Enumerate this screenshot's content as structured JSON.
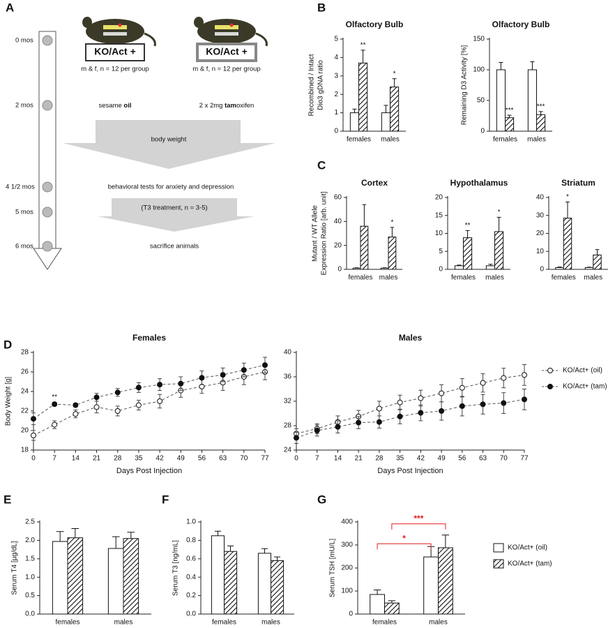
{
  "panel_labels": [
    "A",
    "B",
    "C",
    "D",
    "E",
    "F",
    "G"
  ],
  "timeline": {
    "times": [
      "0 mos",
      "2 mos",
      "4 1/2 mos",
      "5 mos",
      "6 mos"
    ],
    "groups": [
      {
        "label": "KO/Act +",
        "note": "m & f, n = 12 per group",
        "treatment": {
          "prefix": "sesame ",
          "bold": "oil",
          "suffix": ""
        }
      },
      {
        "label": "KO/Act +",
        "note": "m & f, n = 12 per group",
        "treatment": {
          "prefix": "2 x 2mg ",
          "bold": "tam",
          "suffix": "oxifen"
        }
      }
    ],
    "steps": [
      "body weight",
      "behavioral tests for anxiety and depression",
      "(T3 treatment, n = 3-5)",
      "sacrifice animals"
    ]
  },
  "chart_data": [
    {
      "type": "bar",
      "title": "Olfactory Bulb",
      "ylabel": [
        "Recombined / Intact",
        "Dio3 gDNA ratio"
      ],
      "categories": [
        "females",
        "males"
      ],
      "ylim": [
        0,
        5
      ],
      "yticks": [
        0,
        1,
        2,
        3,
        4,
        5
      ],
      "series": [
        {
          "fill": "white",
          "values": [
            1.0,
            1.0
          ],
          "errors": [
            0.2,
            0.4
          ],
          "sig": [
            null,
            null
          ]
        },
        {
          "fill": "hatch",
          "values": [
            3.7,
            2.4
          ],
          "errors": [
            0.7,
            0.45
          ],
          "sig": [
            "**",
            "*"
          ]
        }
      ]
    },
    {
      "type": "bar",
      "title": "Olfactory Bulb",
      "ylabel": [
        "Remaining D3 Activity [%]"
      ],
      "categories": [
        "females",
        "males"
      ],
      "ylim": [
        0,
        150
      ],
      "yticks": [
        0,
        50,
        100,
        150
      ],
      "series": [
        {
          "fill": "white",
          "values": [
            100,
            100
          ],
          "errors": [
            12,
            13
          ],
          "sig": [
            null,
            null
          ]
        },
        {
          "fill": "hatch",
          "values": [
            22,
            27
          ],
          "errors": [
            4,
            5
          ],
          "sig": [
            "***",
            "***"
          ]
        }
      ]
    },
    {
      "type": "bar",
      "title": "Cortex",
      "ylabel": [
        "Mutant / WT Allele",
        "Expression Ratio [arb. unit]"
      ],
      "categories": [
        "females",
        "males"
      ],
      "ylim": [
        0,
        60
      ],
      "yticks": [
        0,
        20,
        40,
        60
      ],
      "series": [
        {
          "fill": "white",
          "values": [
            1,
            1
          ],
          "errors": [
            0.3,
            0.3
          ],
          "sig": [
            null,
            null
          ]
        },
        {
          "fill": "hatch",
          "values": [
            36,
            27
          ],
          "errors": [
            18,
            8
          ],
          "sig": [
            null,
            "*"
          ]
        }
      ]
    },
    {
      "type": "bar",
      "title": "Hypothalamus",
      "categories": [
        "females",
        "males"
      ],
      "ylim": [
        0,
        20
      ],
      "yticks": [
        0,
        5,
        10,
        15,
        20
      ],
      "series": [
        {
          "fill": "white",
          "values": [
            1,
            1
          ],
          "errors": [
            0.2,
            0.4
          ],
          "sig": [
            null,
            null
          ]
        },
        {
          "fill": "hatch",
          "values": [
            8.8,
            10.5
          ],
          "errors": [
            2,
            4
          ],
          "sig": [
            "**",
            "*"
          ]
        }
      ]
    },
    {
      "type": "bar",
      "title": "Striatum",
      "categories": [
        "females",
        "males"
      ],
      "ylim": [
        0,
        40
      ],
      "yticks": [
        0,
        10,
        20,
        30,
        40
      ],
      "series": [
        {
          "fill": "white",
          "values": [
            1,
            1
          ],
          "errors": [
            0.3,
            0.2
          ],
          "sig": [
            null,
            null
          ]
        },
        {
          "fill": "hatch",
          "values": [
            28.5,
            8
          ],
          "errors": [
            9,
            3
          ],
          "sig": [
            "*",
            null
          ]
        }
      ]
    },
    {
      "type": "line",
      "title": "Females",
      "ylabel": [
        "Body Weight [g]"
      ],
      "xlabel": "Days Post Injection",
      "x": [
        0,
        7,
        14,
        21,
        28,
        35,
        42,
        49,
        56,
        63,
        70,
        77
      ],
      "xlim": [
        0,
        77
      ],
      "xticks": [
        0,
        7,
        14,
        21,
        28,
        35,
        42,
        49,
        56,
        63,
        70,
        77
      ],
      "ylim": [
        18,
        28
      ],
      "yticks": [
        18,
        20,
        22,
        24,
        26,
        28
      ],
      "series": [
        {
          "marker": "open",
          "values": [
            19.5,
            20.6,
            21.7,
            22.4,
            22.0,
            22.6,
            23.0,
            24.1,
            24.5,
            24.9,
            25.5,
            26.0
          ],
          "errors": [
            0.5,
            0.4,
            0.4,
            0.6,
            0.5,
            0.5,
            0.7,
            0.7,
            0.7,
            0.8,
            0.8,
            0.8
          ]
        },
        {
          "marker": "filled",
          "values": [
            21.2,
            22.7,
            22.6,
            23.4,
            23.9,
            24.4,
            24.7,
            24.8,
            25.4,
            25.7,
            26.2,
            26.7
          ],
          "errors": [
            0.6,
            0.2,
            0.2,
            0.4,
            0.4,
            0.5,
            0.6,
            0.7,
            0.7,
            0.7,
            0.7,
            0.8
          ],
          "sig": [
            null,
            "**",
            null,
            null,
            null,
            null,
            null,
            null,
            null,
            null,
            null,
            null
          ]
        }
      ]
    },
    {
      "type": "line",
      "title": "Males",
      "xlabel": "Days Post Injection",
      "legend": "right",
      "x": [
        0,
        7,
        14,
        21,
        28,
        35,
        42,
        49,
        56,
        63,
        70,
        77
      ],
      "xlim": [
        0,
        77
      ],
      "xticks": [
        0,
        7,
        14,
        21,
        28,
        35,
        42,
        49,
        56,
        63,
        70,
        77
      ],
      "ylim": [
        24,
        40
      ],
      "yticks": [
        24,
        28,
        32,
        36,
        40
      ],
      "series": [
        {
          "name": "KO/Act+ (oil)",
          "marker": "open",
          "values": [
            26.7,
            27.5,
            28.6,
            29.5,
            30.8,
            31.8,
            32.5,
            33.3,
            34.2,
            35.0,
            35.8,
            36.3
          ],
          "errors": [
            0.8,
            0.8,
            1.0,
            1.0,
            1.2,
            1.2,
            1.3,
            1.4,
            1.5,
            1.5,
            1.6,
            1.7
          ]
        },
        {
          "name": "KO/Act+ (tam)",
          "marker": "filled",
          "values": [
            26.0,
            27.2,
            27.8,
            28.5,
            28.6,
            29.5,
            30.1,
            30.4,
            31.2,
            31.5,
            31.7,
            32.3
          ],
          "errors": [
            0.9,
            0.9,
            1.0,
            1.0,
            1.0,
            1.2,
            1.3,
            1.5,
            1.6,
            1.6,
            1.7,
            1.7
          ]
        }
      ]
    },
    {
      "type": "bar",
      "ylabel": [
        "Serum T4 [µg/dL]"
      ],
      "categories": [
        "females",
        "males"
      ],
      "ylim": [
        0,
        2.5
      ],
      "yticks": [
        {
          "value": 0,
          "label": "0.0"
        },
        0.5,
        {
          "value": 1,
          "label": "1.0"
        },
        1.5,
        {
          "value": 2,
          "label": "2.0"
        },
        2.5
      ],
      "series": [
        {
          "fill": "white",
          "values": [
            1.97,
            1.78
          ],
          "errors": [
            0.27,
            0.32
          ]
        },
        {
          "fill": "hatch",
          "values": [
            2.07,
            2.05
          ],
          "errors": [
            0.25,
            0.17
          ]
        }
      ]
    },
    {
      "type": "bar",
      "ylabel": [
        "Serum T3 [ng/mL]"
      ],
      "categories": [
        "females",
        "males"
      ],
      "ylim": [
        0,
        1
      ],
      "yticks": [
        {
          "value": 0,
          "label": "0.0"
        },
        0.2,
        0.4,
        0.6,
        0.8,
        {
          "value": 1,
          "label": "1.0"
        }
      ],
      "series": [
        {
          "fill": "white",
          "values": [
            0.85,
            0.66
          ],
          "errors": [
            0.05,
            0.05
          ]
        },
        {
          "fill": "hatch",
          "values": [
            0.68,
            0.58
          ],
          "errors": [
            0.06,
            0.04
          ]
        }
      ]
    },
    {
      "type": "bar",
      "ylabel": [
        "Serum TSH [mU/L]"
      ],
      "categories": [
        "females",
        "males"
      ],
      "legend": "right",
      "ylim": [
        0,
        400
      ],
      "yticks": [
        0,
        100,
        200,
        300,
        400
      ],
      "brackets": [
        "*",
        "***"
      ],
      "bracket_color": "#e31a1c",
      "series": [
        {
          "name": "KO/Act+ (oil)",
          "fill": "white",
          "values": [
            85,
            248
          ],
          "errors": [
            20,
            45
          ]
        },
        {
          "name": "KO/Act+ (tam)",
          "fill": "hatch",
          "values": [
            48,
            288
          ],
          "errors": [
            10,
            55
          ]
        }
      ]
    }
  ]
}
